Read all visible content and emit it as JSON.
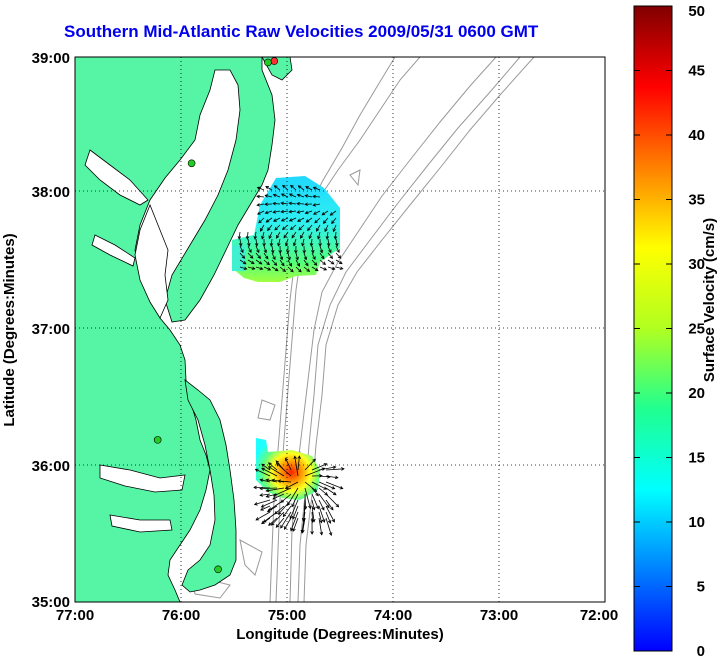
{
  "title": "Southern Mid-Atlantic Raw Velocities 2009/05/31 0600 GMT",
  "xlabel": "Longitude (Degrees:Minutes)",
  "ylabel": "Latitude (Degrees:Minutes)",
  "x_ticks": [
    "77:00",
    "76:00",
    "75:00",
    "74:00",
    "73:00",
    "72:00"
  ],
  "y_ticks": [
    "39:00",
    "38:00",
    "37:00",
    "36:00",
    "35:00"
  ],
  "colorbar": {
    "label": "Surface Velocity (cm/s)",
    "ticks": [
      "50",
      "45",
      "40",
      "35",
      "30",
      "25",
      "20",
      "15",
      "10",
      "5",
      "0"
    ],
    "range": [
      0,
      50
    ]
  },
  "colors": {
    "land": "#55f5a5",
    "title": "#0000ee",
    "bathymetry": "#9a9a9a"
  },
  "stations": [
    {
      "lon": -75.12,
      "lat": 38.97,
      "color": "#ff3030"
    },
    {
      "lon": -75.18,
      "lat": 38.96,
      "color": "#22cc22"
    },
    {
      "lon": -75.9,
      "lat": 38.22,
      "color": "#22cc22"
    },
    {
      "lon": -76.22,
      "lat": 36.19,
      "color": "#22cc22"
    },
    {
      "lon": -75.65,
      "lat": 35.24,
      "color": "#22cc22"
    }
  ]
}
